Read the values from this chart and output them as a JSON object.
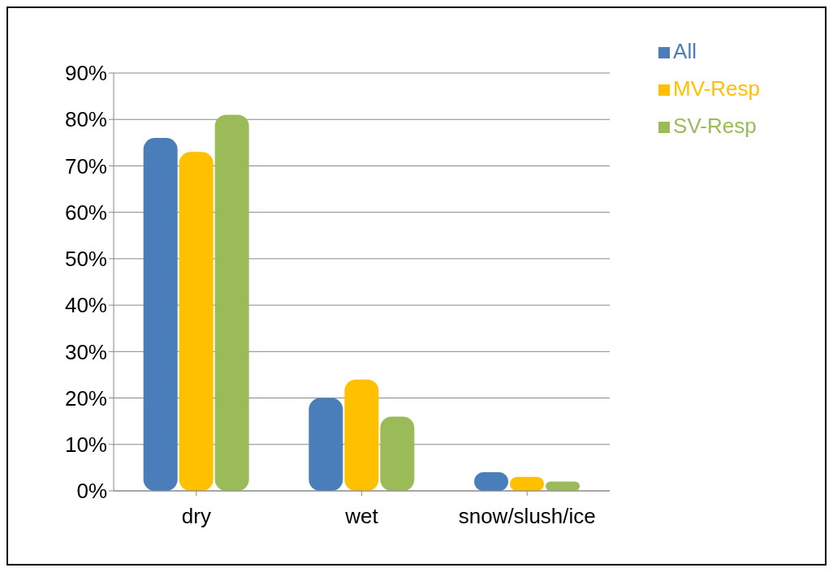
{
  "chart_data": {
    "type": "bar",
    "categories": [
      "dry",
      "wet",
      "snow/slush/ice"
    ],
    "series": [
      {
        "name": "All",
        "color": "#4a7ebb",
        "values": [
          76,
          20,
          4
        ]
      },
      {
        "name": "MV-Resp",
        "color": "#ffc000",
        "values": [
          73,
          24,
          3
        ]
      },
      {
        "name": "SV-Resp",
        "color": "#9bbb59",
        "values": [
          81,
          16,
          2
        ]
      }
    ],
    "ylim": [
      0,
      90
    ],
    "yticks": [
      {
        "value": 0,
        "label": "0%"
      },
      {
        "value": 10,
        "label": "10%"
      },
      {
        "value": 20,
        "label": "20%"
      },
      {
        "value": 30,
        "label": "30%"
      },
      {
        "value": 40,
        "label": "40%"
      },
      {
        "value": 50,
        "label": "50%"
      },
      {
        "value": 60,
        "label": "60%"
      },
      {
        "value": 70,
        "label": "70%"
      },
      {
        "value": 80,
        "label": "80%"
      },
      {
        "value": 90,
        "label": "90%"
      }
    ],
    "grid": "y",
    "legend": "top right"
  }
}
